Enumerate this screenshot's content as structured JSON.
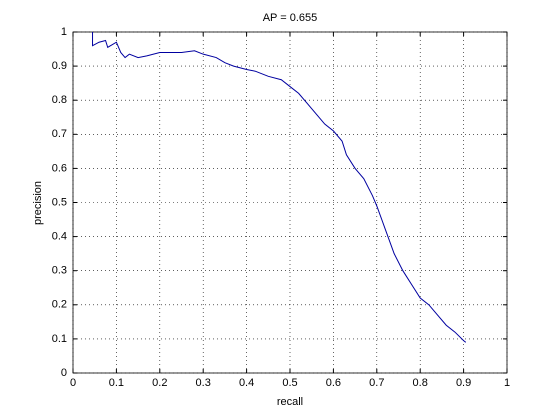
{
  "chart_data": {
    "type": "line",
    "title": "AP = 0.655",
    "x_label": "recall",
    "y_label": "precision",
    "color": "#0000a0",
    "grid": true,
    "x": [
      0.045,
      0.045,
      0.06,
      0.075,
      0.08,
      0.1,
      0.11,
      0.12,
      0.13,
      0.15,
      0.17,
      0.2,
      0.25,
      0.28,
      0.3,
      0.33,
      0.35,
      0.37,
      0.4,
      0.42,
      0.45,
      0.48,
      0.5,
      0.52,
      0.54,
      0.56,
      0.58,
      0.6,
      0.62,
      0.63,
      0.65,
      0.67,
      0.69,
      0.7,
      0.72,
      0.74,
      0.76,
      0.78,
      0.8,
      0.82,
      0.84,
      0.86,
      0.88,
      0.9,
      0.905
    ],
    "values": [
      1.0,
      0.96,
      0.97,
      0.975,
      0.955,
      0.97,
      0.94,
      0.925,
      0.935,
      0.925,
      0.93,
      0.94,
      0.94,
      0.945,
      0.935,
      0.925,
      0.91,
      0.9,
      0.89,
      0.885,
      0.87,
      0.86,
      0.84,
      0.82,
      0.79,
      0.76,
      0.73,
      0.71,
      0.68,
      0.64,
      0.6,
      0.57,
      0.52,
      0.49,
      0.42,
      0.35,
      0.3,
      0.26,
      0.22,
      0.2,
      0.17,
      0.14,
      0.12,
      0.095,
      0.09
    ],
    "xlim": [
      0,
      1
    ],
    "ylim": [
      0,
      1
    ],
    "xticks": [
      0,
      0.1,
      0.2,
      0.3,
      0.4,
      0.5,
      0.6,
      0.7,
      0.8,
      0.9,
      1
    ],
    "yticks": [
      0,
      0.1,
      0.2,
      0.3,
      0.4,
      0.5,
      0.6,
      0.7,
      0.8,
      0.9,
      1
    ]
  }
}
